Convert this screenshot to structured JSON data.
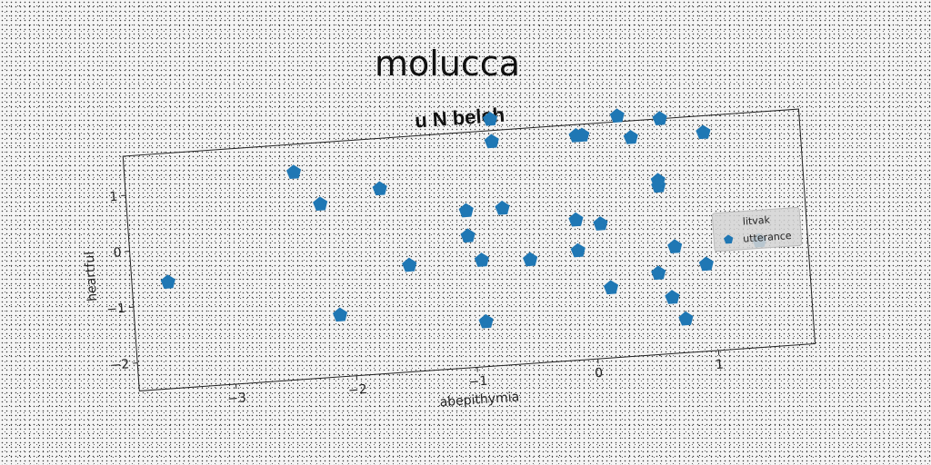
{
  "figure": {
    "suptitle": "molucca"
  },
  "chart_data": {
    "type": "scatter",
    "title": "u N belch",
    "xlabel": "abepithymia",
    "ylabel": "heartful",
    "xlim": [
      -3.8,
      1.8
    ],
    "ylim": [
      -2.5,
      1.7
    ],
    "xticks": [
      -3,
      -2,
      -1,
      0,
      1
    ],
    "yticks": [
      -2,
      -1,
      0,
      1
    ],
    "xtick_labels": [
      "−3",
      "−2",
      "−1",
      "0",
      "1"
    ],
    "ytick_labels": [
      "−2",
      "−1",
      "0",
      "1"
    ],
    "grid": false,
    "legend": {
      "title": "litvak",
      "placement": "right",
      "entries": [
        "utterance"
      ]
    },
    "series": [
      {
        "name": "utterance",
        "color": "#1f77b4",
        "marker": "pentagon",
        "points": [
          [
            -3.5,
            -0.6
          ],
          [
            -2.4,
            1.2
          ],
          [
            -2.2,
            0.6
          ],
          [
            -2.1,
            -1.4
          ],
          [
            -1.7,
            0.8
          ],
          [
            -1.5,
            -0.6
          ],
          [
            -1.0,
            0.3
          ],
          [
            -1.0,
            -0.15
          ],
          [
            -0.9,
            -0.6
          ],
          [
            -0.9,
            -1.7
          ],
          [
            -0.75,
            1.9
          ],
          [
            -0.75,
            1.5
          ],
          [
            -0.7,
            0.3
          ],
          [
            -0.5,
            -0.65
          ],
          [
            -0.05,
            1.5
          ],
          [
            0.0,
            1.5
          ],
          [
            -0.1,
            0.0
          ],
          [
            -0.1,
            -0.55
          ],
          [
            0.1,
            -0.1
          ],
          [
            0.15,
            -1.25
          ],
          [
            0.3,
            1.8
          ],
          [
            0.4,
            1.4
          ],
          [
            0.55,
            -1.05
          ],
          [
            0.6,
            0.6
          ],
          [
            0.6,
            0.5
          ],
          [
            0.65,
            1.7
          ],
          [
            0.65,
            -1.5
          ],
          [
            0.7,
            -0.6
          ],
          [
            0.75,
            -1.9
          ],
          [
            0.95,
            -0.95
          ],
          [
            1.0,
            1.4
          ],
          [
            1.4,
            -0.6
          ]
        ]
      }
    ]
  }
}
